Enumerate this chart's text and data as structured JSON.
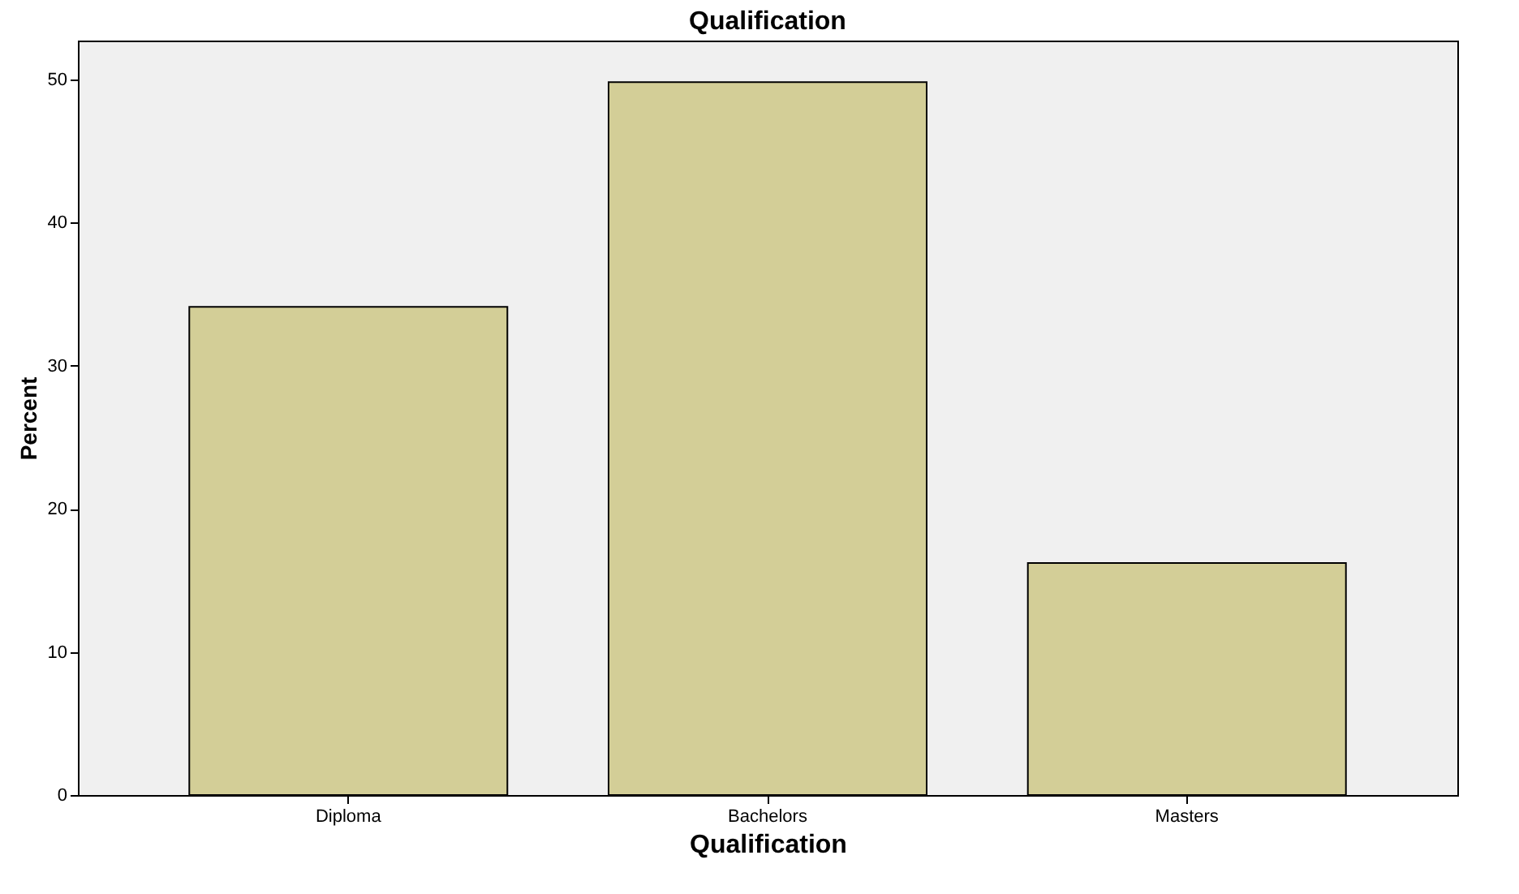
{
  "chart_data": {
    "type": "bar",
    "title": "Qualification",
    "xlabel": "Qualification",
    "ylabel": "Percent",
    "categories": [
      "Diploma",
      "Bachelors",
      "Masters"
    ],
    "values": [
      34.1,
      49.8,
      16.2
    ],
    "color": "#d3ce97",
    "ylim": [
      0,
      52.7
    ],
    "yticks": [
      0,
      10,
      20,
      30,
      40,
      50
    ],
    "grid": false
  }
}
